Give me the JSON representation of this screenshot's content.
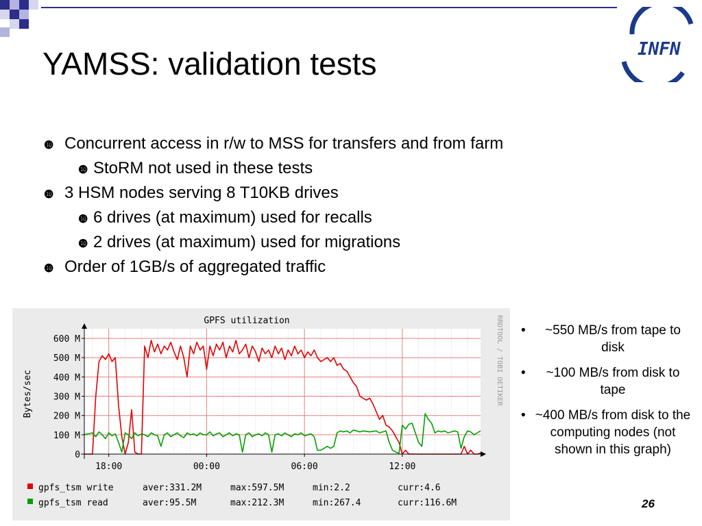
{
  "slide": {
    "title": "YAMSS: validation tests",
    "logo_text": "INFN",
    "page_number": "26",
    "bullet_marker": "❿",
    "bullets": [
      {
        "level": 1,
        "text": "Concurrent access in r/w to MSS for transfers and from farm"
      },
      {
        "level": 2,
        "text": "StoRM not used in these tests"
      },
      {
        "level": 1,
        "text": "3  HSM nodes serving 8 T10KB drives"
      },
      {
        "level": 2,
        "text": "6 drives (at maximum) used for recalls"
      },
      {
        "level": 2,
        "text": "2 drives (at maximum) used for migrations"
      },
      {
        "level": 1,
        "text": "Order of 1GB/s of aggregated traffic"
      }
    ],
    "side_marker": "•",
    "side_notes": [
      "~550 MB/s from tape to disk",
      "~100 MB/s from disk to tape",
      "~400 MB/s from disk to the computing nodes (not shown in this graph)"
    ]
  },
  "colors": {
    "write": "#e00000",
    "read": "#00a000",
    "grid": "#e08080",
    "graph_bg": "#ebebeb",
    "plot_bg": "#ffffff",
    "decor": "#2d2d8a"
  },
  "chart_data": {
    "type": "line",
    "title": "GPFS utilization",
    "ylabel": "Bytes/sec",
    "side_label": "RRDTOOL / TOBI OETIKER",
    "ylim": [
      0,
      650
    ],
    "yticks": [
      0,
      100,
      200,
      300,
      400,
      500,
      600
    ],
    "ytick_labels": [
      "0",
      "100 M",
      "200 M",
      "300 M",
      "400 M",
      "500 M",
      "600 M"
    ],
    "xlim": [
      -7.5,
      16.8
    ],
    "xticks": [
      -6,
      0,
      6,
      12
    ],
    "xtick_labels": [
      "18:00",
      "00:00",
      "06:00",
      "12:00"
    ],
    "grid": true,
    "series": [
      {
        "name": "gpfs_tsm write",
        "legend": [
          "gpfs_tsm write",
          "aver:331.2M",
          "max:597.5M",
          "min:2.2",
          "curr:4.6"
        ],
        "x": [
          -7.5,
          -7.0,
          -6.8,
          -6.6,
          -6.4,
          -6.2,
          -6.0,
          -5.8,
          -5.6,
          -5.4,
          -5.2,
          -5.0,
          -4.8,
          -4.6,
          -4.4,
          -4.2,
          -4.0,
          -3.8,
          -3.6,
          -3.4,
          -3.2,
          -3.0,
          -2.8,
          -2.6,
          -2.4,
          -2.2,
          -2.0,
          -1.8,
          -1.6,
          -1.4,
          -1.2,
          -1.0,
          -0.8,
          -0.6,
          -0.4,
          -0.2,
          0.0,
          0.2,
          0.4,
          0.6,
          0.8,
          1.0,
          1.2,
          1.4,
          1.6,
          1.8,
          2.0,
          2.2,
          2.4,
          2.6,
          2.8,
          3.0,
          3.2,
          3.4,
          3.6,
          3.8,
          4.0,
          4.2,
          4.4,
          4.6,
          4.8,
          5.0,
          5.2,
          5.4,
          5.6,
          5.8,
          6.0,
          6.2,
          6.4,
          6.6,
          6.8,
          7.0,
          7.2,
          7.4,
          7.6,
          7.8,
          8.0,
          8.2,
          8.4,
          8.6,
          8.8,
          9.0,
          9.2,
          9.4,
          9.6,
          9.8,
          10.0,
          10.2,
          10.4,
          10.6,
          10.8,
          11.0,
          11.2,
          11.4,
          11.6,
          11.8,
          12.0,
          12.2,
          12.4,
          12.6,
          12.8,
          13.0,
          13.2,
          13.4,
          13.6,
          13.8,
          14.0,
          14.2,
          14.4,
          14.6,
          14.8,
          15.0,
          15.2,
          15.4,
          15.6,
          15.8,
          16.0,
          16.2,
          16.4,
          16.6,
          16.8
        ],
        "values": [
          0,
          0,
          300,
          480,
          510,
          490,
          520,
          480,
          500,
          250,
          90,
          0,
          60,
          230,
          10,
          0,
          0,
          560,
          500,
          590,
          530,
          570,
          520,
          560,
          540,
          580,
          530,
          490,
          560,
          500,
          400,
          560,
          520,
          580,
          540,
          560,
          440,
          560,
          510,
          570,
          540,
          580,
          500,
          560,
          530,
          590,
          520,
          540,
          570,
          500,
          560,
          530,
          480,
          550,
          520,
          540,
          500,
          560,
          520,
          550,
          490,
          540,
          510,
          560,
          520,
          540,
          500,
          530,
          510,
          540,
          500,
          480,
          490,
          500,
          480,
          500,
          460,
          470,
          440,
          430,
          400,
          370,
          350,
          300,
          290,
          280,
          290,
          260,
          220,
          180,
          200,
          150,
          140,
          120,
          90,
          60,
          0,
          20,
          0,
          0,
          0,
          0,
          0,
          0,
          0,
          0,
          0,
          0,
          0,
          0,
          0,
          0,
          0,
          0,
          0,
          40,
          0,
          20,
          0,
          0,
          5
        ]
      },
      {
        "name": "gpfs_tsm read",
        "legend": [
          "gpfs_tsm read",
          "aver:95.5M",
          "max:212.3M",
          "min:267.4",
          "curr:116.6M"
        ],
        "x": [
          -7.5,
          -7.0,
          -6.8,
          -6.6,
          -6.4,
          -6.2,
          -6.0,
          -5.8,
          -5.6,
          -5.4,
          -5.2,
          -5.0,
          -4.8,
          -4.6,
          -4.4,
          -4.2,
          -4.0,
          -3.8,
          -3.6,
          -3.4,
          -3.2,
          -3.0,
          -2.8,
          -2.6,
          -2.4,
          -2.2,
          -2.0,
          -1.8,
          -1.6,
          -1.4,
          -1.2,
          -1.0,
          -0.8,
          -0.6,
          -0.4,
          -0.2,
          0.0,
          0.2,
          0.4,
          0.6,
          0.8,
          1.0,
          1.2,
          1.4,
          1.6,
          1.8,
          2.0,
          2.2,
          2.4,
          2.6,
          2.8,
          3.0,
          3.2,
          3.4,
          3.6,
          3.8,
          4.0,
          4.2,
          4.4,
          4.6,
          4.8,
          5.0,
          5.2,
          5.4,
          5.6,
          5.8,
          6.0,
          6.2,
          6.4,
          6.6,
          6.8,
          7.0,
          7.2,
          7.4,
          7.6,
          7.8,
          8.0,
          8.2,
          8.4,
          8.6,
          8.8,
          9.0,
          9.2,
          9.4,
          9.6,
          9.8,
          10.0,
          10.2,
          10.4,
          10.6,
          10.8,
          11.0,
          11.2,
          11.4,
          11.6,
          11.8,
          12.0,
          12.2,
          12.4,
          12.6,
          12.8,
          13.0,
          13.2,
          13.4,
          13.6,
          13.8,
          14.0,
          14.2,
          14.4,
          14.6,
          14.8,
          15.0,
          15.2,
          15.4,
          15.6,
          15.8,
          16.0,
          16.2,
          16.4,
          16.6,
          16.8
        ],
        "values": [
          100,
          110,
          90,
          115,
          100,
          80,
          110,
          95,
          105,
          60,
          10,
          110,
          100,
          80,
          110,
          95,
          105,
          100,
          90,
          110,
          100,
          95,
          40,
          100,
          110,
          90,
          100,
          110,
          95,
          85,
          110,
          100,
          105,
          95,
          110,
          100,
          100,
          115,
          95,
          105,
          110,
          90,
          100,
          110,
          95,
          105,
          100,
          10,
          100,
          110,
          90,
          100,
          105,
          95,
          110,
          100,
          10,
          100,
          105,
          95,
          110,
          100,
          90,
          105,
          100,
          110,
          95,
          100,
          105,
          90,
          20,
          20,
          30,
          40,
          30,
          40,
          110,
          120,
          115,
          120,
          110,
          125,
          120,
          115,
          120,
          118,
          115,
          118,
          120,
          110,
          115,
          120,
          60,
          20,
          10,
          5,
          150,
          130,
          155,
          160,
          110,
          60,
          40,
          210,
          180,
          160,
          110,
          120,
          115,
          120,
          110,
          115,
          120,
          115,
          30,
          90,
          120,
          115,
          100,
          110,
          120
        ]
      }
    ]
  }
}
